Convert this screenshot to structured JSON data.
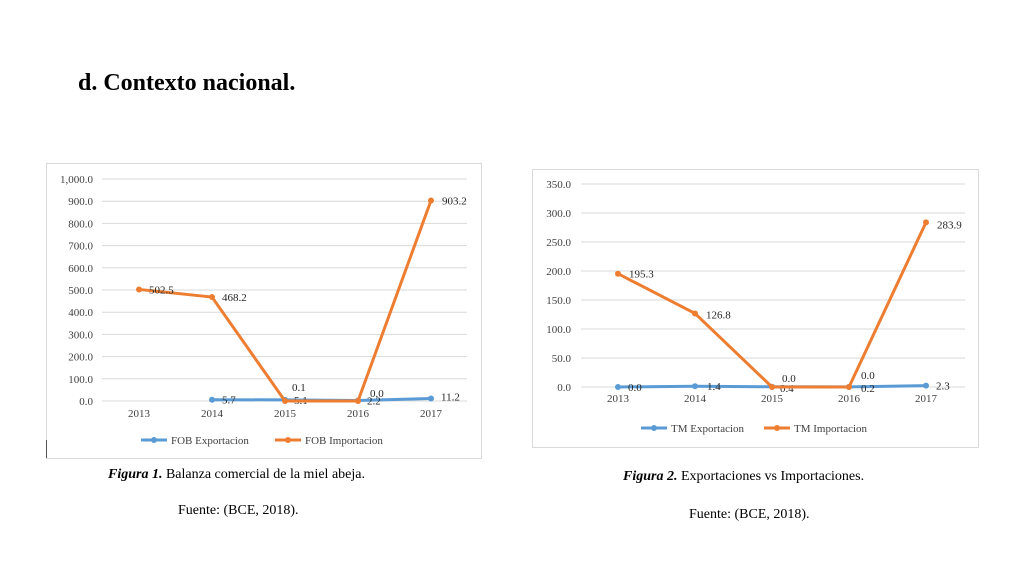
{
  "page": {
    "heading": "d. Contexto nacional."
  },
  "figures": [
    {
      "caption_label": "Figura 1.",
      "caption_text": " Balanza comercial de la miel abeja.",
      "source": "Fuente: (BCE, 2018)."
    },
    {
      "caption_label": "Figura 2.",
      "caption_text": " Exportaciones vs Importaciones.",
      "source": "Fuente: (BCE, 2018)."
    }
  ],
  "chart_data": [
    {
      "type": "line",
      "title": "",
      "xlabel": "",
      "ylabel": "",
      "categories": [
        "2013",
        "2014",
        "2015",
        "2016",
        "2017"
      ],
      "ylim": [
        0,
        1000
      ],
      "yticks": [
        "0.0",
        "100.0",
        "200.0",
        "300.0",
        "400.0",
        "500.0",
        "600.0",
        "700.0",
        "800.0",
        "900.0",
        "1,000.0"
      ],
      "grid": true,
      "legend": "bottom",
      "series": [
        {
          "name": "FOB Exportacion",
          "color": "#5b9bd5",
          "values": [
            null,
            5.7,
            5.1,
            2.2,
            11.2
          ],
          "labels": [
            null,
            "5.7",
            "5.1",
            "2.2",
            "11.2"
          ]
        },
        {
          "name": "FOB Importacion",
          "color": "#ed7d31",
          "values": [
            502.5,
            468.2,
            0.1,
            0.0,
            903.2
          ],
          "labels": [
            "502.5",
            "468.2",
            "0.1",
            "0.0",
            "903.2"
          ]
        }
      ]
    },
    {
      "type": "line",
      "title": "",
      "xlabel": "",
      "ylabel": "",
      "categories": [
        "2013",
        "2014",
        "2015",
        "2016",
        "2017"
      ],
      "ylim": [
        0,
        350
      ],
      "yticks": [
        "0.0",
        "50.0",
        "100.0",
        "150.0",
        "200.0",
        "250.0",
        "300.0",
        "350.0"
      ],
      "grid": true,
      "legend": "bottom",
      "series": [
        {
          "name": "TM Exportacion",
          "color": "#5b9bd5",
          "values": [
            0.0,
            1.4,
            0.4,
            0.2,
            2.3
          ],
          "labels": [
            "0.0",
            "1.4",
            "0.4",
            "0.2",
            "2.3"
          ]
        },
        {
          "name": "TM Importacion",
          "color": "#ed7d31",
          "values": [
            195.3,
            126.8,
            0.0,
            0.0,
            283.9
          ],
          "labels": [
            "195.3",
            "126.8",
            "0.0",
            "0.0",
            "283.9"
          ]
        }
      ]
    }
  ]
}
